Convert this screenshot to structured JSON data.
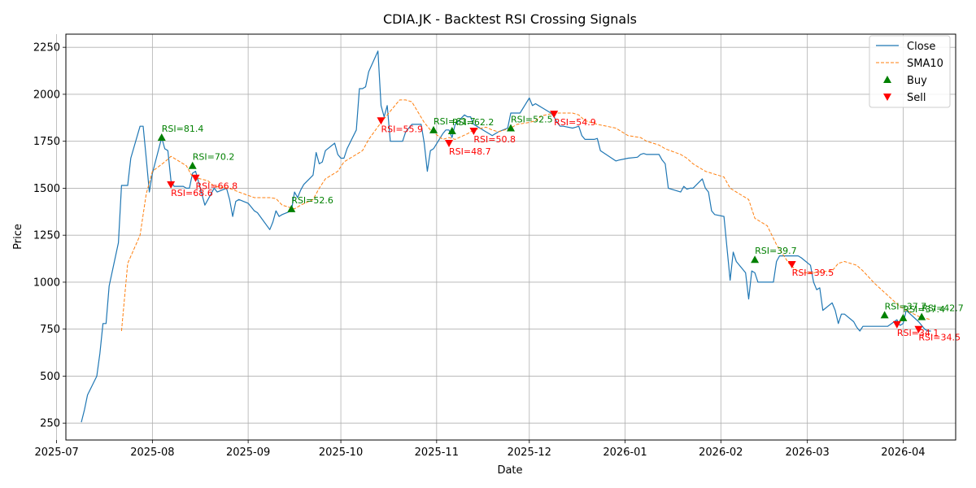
{
  "chart_data": {
    "type": "line",
    "title": "CDIA.JK - Backtest RSI Crossing Signals",
    "xlabel": "Date",
    "ylabel": "Price",
    "xlim": [
      "2025-07-04",
      "2026-04-18"
    ],
    "ylim": [
      160,
      2320
    ],
    "grid": true,
    "legend_position": "top-right",
    "x_ticks": [
      {
        "date": "2025-07-01",
        "label": "2025-07"
      },
      {
        "date": "2025-08-01",
        "label": "2025-08"
      },
      {
        "date": "2025-09-01",
        "label": "2025-09"
      },
      {
        "date": "2025-10-01",
        "label": "2025-10"
      },
      {
        "date": "2025-11-01",
        "label": "2025-11"
      },
      {
        "date": "2025-12-01",
        "label": "2025-12"
      },
      {
        "date": "2026-01-01",
        "label": "2026-01"
      },
      {
        "date": "2026-02-01",
        "label": "2026-02"
      },
      {
        "date": "2026-03-01",
        "label": "2026-03"
      },
      {
        "date": "2026-04-01",
        "label": "2026-04"
      }
    ],
    "y_ticks": [
      250,
      500,
      750,
      1000,
      1250,
      1500,
      1750,
      2000,
      2250
    ],
    "series": [
      {
        "name": "Close",
        "color": "#1f77b4",
        "style": "solid",
        "x": [
          "2025-07-09",
          "2025-07-10",
          "2025-07-11",
          "2025-07-14",
          "2025-07-15",
          "2025-07-16",
          "2025-07-17",
          "2025-07-18",
          "2025-07-21",
          "2025-07-22",
          "2025-07-23",
          "2025-07-24",
          "2025-07-25",
          "2025-07-28",
          "2025-07-29",
          "2025-07-30",
          "2025-07-31",
          "2025-08-01",
          "2025-08-04",
          "2025-08-05",
          "2025-08-06",
          "2025-08-07",
          "2025-08-08",
          "2025-08-11",
          "2025-08-12",
          "2025-08-13",
          "2025-08-14",
          "2025-08-15",
          "2025-08-18",
          "2025-08-19",
          "2025-08-20",
          "2025-08-21",
          "2025-08-22",
          "2025-08-25",
          "2025-08-26",
          "2025-08-27",
          "2025-08-28",
          "2025-08-29",
          "2025-09-01",
          "2025-09-02",
          "2025-09-03",
          "2025-09-04",
          "2025-09-08",
          "2025-09-09",
          "2025-09-10",
          "2025-09-11",
          "2025-09-12",
          "2025-09-15",
          "2025-09-16",
          "2025-09-17",
          "2025-09-18",
          "2025-09-19",
          "2025-09-22",
          "2025-09-23",
          "2025-09-24",
          "2025-09-25",
          "2025-09-26",
          "2025-09-29",
          "2025-09-30",
          "2025-10-01",
          "2025-10-02",
          "2025-10-03",
          "2025-10-06",
          "2025-10-07",
          "2025-10-08",
          "2025-10-09",
          "2025-10-10",
          "2025-10-13",
          "2025-10-14",
          "2025-10-15",
          "2025-10-16",
          "2025-10-17",
          "2025-10-20",
          "2025-10-21",
          "2025-10-22",
          "2025-10-23",
          "2025-10-24",
          "2025-10-27",
          "2025-10-28",
          "2025-10-29",
          "2025-10-30",
          "2025-10-31",
          "2025-11-03",
          "2025-11-04",
          "2025-11-05",
          "2025-11-06",
          "2025-11-07",
          "2025-11-10",
          "2025-11-11",
          "2025-11-12",
          "2025-11-13",
          "2025-11-14",
          "2025-11-17",
          "2025-11-18",
          "2025-11-19",
          "2025-11-20",
          "2025-11-21",
          "2025-11-24",
          "2025-11-25",
          "2025-11-26",
          "2025-11-27",
          "2025-11-28",
          "2025-12-01",
          "2025-12-02",
          "2025-12-03",
          "2025-12-04",
          "2025-12-05",
          "2025-12-08",
          "2025-12-09",
          "2025-12-10",
          "2025-12-11",
          "2025-12-12",
          "2025-12-15",
          "2025-12-16",
          "2025-12-17",
          "2025-12-18",
          "2025-12-19",
          "2025-12-22",
          "2025-12-23",
          "2025-12-24",
          "2025-12-29",
          "2025-12-30",
          "2026-01-02",
          "2026-01-05",
          "2026-01-06",
          "2026-01-07",
          "2026-01-08",
          "2026-01-09",
          "2026-01-12",
          "2026-01-13",
          "2026-01-14",
          "2026-01-15",
          "2026-01-19",
          "2026-01-20",
          "2026-01-21",
          "2026-01-22",
          "2026-01-23",
          "2026-01-26",
          "2026-01-27",
          "2026-01-28",
          "2026-01-29",
          "2026-01-30",
          "2026-02-02",
          "2026-02-03",
          "2026-02-04",
          "2026-02-05",
          "2026-02-06",
          "2026-02-09",
          "2026-02-10",
          "2026-02-11",
          "2026-02-12",
          "2026-02-13",
          "2026-02-16",
          "2026-02-18",
          "2026-02-19",
          "2026-02-20",
          "2026-02-23",
          "2026-02-24",
          "2026-02-25",
          "2026-02-26",
          "2026-02-27",
          "2026-03-02",
          "2026-03-03",
          "2026-03-04",
          "2026-03-05",
          "2026-03-06",
          "2026-03-09",
          "2026-03-10",
          "2026-03-11",
          "2026-03-12",
          "2026-03-13",
          "2026-03-16",
          "2026-03-17",
          "2026-03-18",
          "2026-03-19",
          "2026-03-20",
          "2026-03-23",
          "2026-03-24",
          "2026-03-25",
          "2026-03-26",
          "2026-03-27",
          "2026-03-30",
          "2026-03-31",
          "2026-04-01",
          "2026-04-02",
          "2026-04-06",
          "2026-04-07",
          "2026-04-08",
          "2026-04-09",
          "2026-04-10"
        ],
        "values": [
          255,
          320,
          400,
          500,
          620,
          780,
          780,
          980,
          1210,
          1515,
          1515,
          1515,
          1660,
          1830,
          1830,
          1660,
          1480,
          1580,
          1770,
          1710,
          1700,
          1540,
          1510,
          1510,
          1500,
          1500,
          1580,
          1590,
          1410,
          1440,
          1470,
          1500,
          1480,
          1500,
          1440,
          1350,
          1430,
          1440,
          1420,
          1400,
          1380,
          1370,
          1280,
          1320,
          1380,
          1350,
          1360,
          1380,
          1480,
          1450,
          1490,
          1520,
          1570,
          1690,
          1630,
          1640,
          1700,
          1740,
          1680,
          1660,
          1660,
          1710,
          1810,
          2030,
          2030,
          2040,
          2120,
          2230,
          1940,
          1880,
          1940,
          1750,
          1750,
          1750,
          1800,
          1820,
          1840,
          1840,
          1740,
          1590,
          1700,
          1710,
          1790,
          1810,
          1810,
          1770,
          1840,
          1890,
          1880,
          1880,
          1840,
          1830,
          1800,
          1790,
          1780,
          1790,
          1800,
          1820,
          1900,
          1900,
          1900,
          1900,
          1980,
          1940,
          1950,
          1940,
          1930,
          1900,
          1880,
          1850,
          1830,
          1830,
          1820,
          1825,
          1830,
          1780,
          1760,
          1760,
          1765,
          1700,
          1645,
          1650,
          1660,
          1665,
          1680,
          1685,
          1680,
          1680,
          1680,
          1650,
          1630,
          1500,
          1480,
          1510,
          1495,
          1500,
          1500,
          1550,
          1500,
          1480,
          1380,
          1360,
          1350,
          1180,
          1010,
          1160,
          1110,
          1050,
          910,
          1060,
          1050,
          1000,
          1000,
          1000,
          1110,
          1140,
          1140,
          1140,
          1140,
          1140,
          1130,
          1090,
          1000,
          960,
          970,
          850,
          890,
          850,
          780,
          830,
          830,
          790,
          760,
          740,
          765,
          765,
          765,
          765,
          765,
          765,
          765,
          800,
          770,
          780,
          850,
          790,
          770,
          750,
          740,
          740
        ]
      },
      {
        "name": "SMA10",
        "color": "#ff7f0e",
        "style": "dashed",
        "x": [
          "2025-07-22",
          "2025-07-24",
          "2025-07-28",
          "2025-07-30",
          "2025-08-01",
          "2025-08-05",
          "2025-08-07",
          "2025-08-12",
          "2025-08-14",
          "2025-08-19",
          "2025-08-21",
          "2025-08-26",
          "2025-08-29",
          "2025-09-03",
          "2025-09-08",
          "2025-09-10",
          "2025-09-12",
          "2025-09-16",
          "2025-09-18",
          "2025-09-22",
          "2025-09-24",
          "2025-09-26",
          "2025-09-30",
          "2025-10-02",
          "2025-10-06",
          "2025-10-08",
          "2025-10-10",
          "2025-10-14",
          "2025-10-16",
          "2025-10-20",
          "2025-10-22",
          "2025-10-24",
          "2025-10-28",
          "2025-10-30",
          "2025-11-03",
          "2025-11-05",
          "2025-11-07",
          "2025-11-11",
          "2025-11-13",
          "2025-11-17",
          "2025-11-19",
          "2025-11-21",
          "2025-11-25",
          "2025-11-27",
          "2025-12-01",
          "2025-12-03",
          "2025-12-05",
          "2025-12-09",
          "2025-12-11",
          "2025-12-15",
          "2025-12-17",
          "2025-12-19",
          "2025-12-23",
          "2025-12-29",
          "2026-01-02",
          "2026-01-06",
          "2026-01-08",
          "2026-01-12",
          "2026-01-14",
          "2026-01-19",
          "2026-01-21",
          "2026-01-23",
          "2026-01-27",
          "2026-01-29",
          "2026-02-02",
          "2026-02-04",
          "2026-02-06",
          "2026-02-10",
          "2026-02-12",
          "2026-02-16",
          "2026-02-19",
          "2026-02-23",
          "2026-02-25",
          "2026-02-27",
          "2026-03-03",
          "2026-03-05",
          "2026-03-09",
          "2026-03-11",
          "2026-03-13",
          "2026-03-17",
          "2026-03-19",
          "2026-03-23",
          "2026-03-25",
          "2026-03-27",
          "2026-03-31",
          "2026-04-02",
          "2026-04-07",
          "2026-04-09",
          "2026-04-10"
        ],
        "values": [
          740,
          1100,
          1250,
          1470,
          1590,
          1640,
          1670,
          1620,
          1560,
          1540,
          1510,
          1500,
          1480,
          1450,
          1450,
          1445,
          1410,
          1390,
          1410,
          1440,
          1500,
          1550,
          1590,
          1640,
          1680,
          1700,
          1760,
          1850,
          1890,
          1970,
          1970,
          1960,
          1850,
          1810,
          1760,
          1770,
          1760,
          1790,
          1810,
          1825,
          1810,
          1800,
          1820,
          1840,
          1850,
          1860,
          1885,
          1900,
          1900,
          1900,
          1890,
          1860,
          1840,
          1820,
          1780,
          1770,
          1750,
          1730,
          1710,
          1680,
          1660,
          1630,
          1590,
          1580,
          1560,
          1500,
          1480,
          1440,
          1340,
          1300,
          1200,
          1100,
          1070,
          1050,
          1050,
          1055,
          1060,
          1100,
          1110,
          1090,
          1060,
          990,
          960,
          930,
          870,
          850,
          810,
          805,
          800
        ]
      }
    ],
    "buy_signals": [
      {
        "date": "2025-08-04",
        "price": 1770,
        "label": "RSI=81.4"
      },
      {
        "date": "2025-08-14",
        "price": 1620,
        "label": "RSI=70.2"
      },
      {
        "date": "2025-09-15",
        "price": 1390,
        "label": "RSI=52.6"
      },
      {
        "date": "2025-10-31",
        "price": 1810,
        "label": "RSI=61.7"
      },
      {
        "date": "2025-11-06",
        "price": 1805,
        "label": "RSI=62.2"
      },
      {
        "date": "2025-11-25",
        "price": 1820,
        "label": "RSI=52.5"
      },
      {
        "date": "2026-02-12",
        "price": 1120,
        "label": "RSI=39.7"
      },
      {
        "date": "2026-03-26",
        "price": 825,
        "label": "RSI=37.7"
      },
      {
        "date": "2026-04-01",
        "price": 810,
        "label": "RSI=37.4"
      },
      {
        "date": "2026-04-07",
        "price": 815,
        "label": "RSI=42.7"
      }
    ],
    "sell_signals": [
      {
        "date": "2025-08-07",
        "price": 1520,
        "label": "RSI=68.6"
      },
      {
        "date": "2025-08-15",
        "price": 1555,
        "label": "RSI=66.8"
      },
      {
        "date": "2025-10-14",
        "price": 1860,
        "label": "RSI=55.9"
      },
      {
        "date": "2025-11-05",
        "price": 1740,
        "label": "RSI=48.7"
      },
      {
        "date": "2025-11-13",
        "price": 1805,
        "label": "RSI=50.8"
      },
      {
        "date": "2025-12-09",
        "price": 1895,
        "label": "RSI=54.9"
      },
      {
        "date": "2026-02-24",
        "price": 1095,
        "label": "RSI=39.5"
      },
      {
        "date": "2026-03-30",
        "price": 775,
        "label": "RSI=34.1"
      },
      {
        "date": "2026-04-06",
        "price": 750,
        "label": "RSI=34.5"
      }
    ],
    "legend": [
      {
        "label": "Close",
        "kind": "line-solid",
        "color": "#1f77b4"
      },
      {
        "label": "SMA10",
        "kind": "line-dashed",
        "color": "#ff7f0e"
      },
      {
        "label": "Buy",
        "kind": "triangle-up",
        "color": "#008000"
      },
      {
        "label": "Sell",
        "kind": "triangle-down",
        "color": "#ff0000"
      }
    ]
  }
}
